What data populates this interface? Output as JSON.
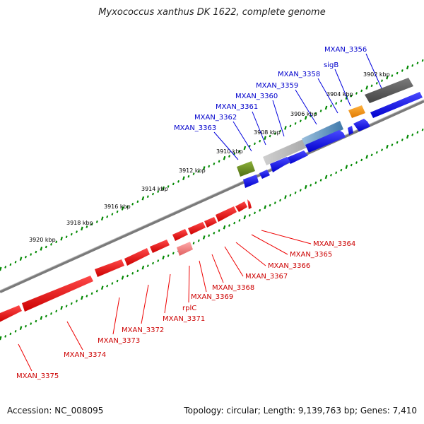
{
  "title": "Myxococcus xanthus DK 1622, complete genome",
  "footer": {
    "accession": "Accession: NC_008095",
    "summary": "Topology: circular; Length: 9,139,763 bp; Genes: 7,410"
  },
  "colors": {
    "forward": "#0000dd",
    "reverse": "#ee0000",
    "forward_label": "#0000cc",
    "reverse_label": "#cc0000",
    "backbone": "#777777",
    "gc_ticks": "#008800"
  },
  "ticks": [
    "3902 kbp",
    "3904 kbp",
    "3906 kbp",
    "3908 kbp",
    "3910 kbp",
    "3912 kbp",
    "3914 kbp",
    "3916 kbp",
    "3918 kbp",
    "3920 kbp"
  ],
  "forward_labels": [
    "MXAN_3356",
    "sigB",
    "MXAN_3358",
    "MXAN_3359",
    "MXAN_3360",
    "MXAN_3361",
    "MXAN_3362",
    "MXAN_3363"
  ],
  "reverse_labels": [
    "MXAN_3364",
    "MXAN_3365",
    "MXAN_3366",
    "MXAN_3367",
    "MXAN_3368",
    "MXAN_3369",
    "rplC",
    "MXAN_3371",
    "MXAN_3372",
    "MXAN_3373",
    "MXAN_3374",
    "MXAN_3375"
  ],
  "feature_tracks": {
    "outer_features": [
      {
        "label": "gray-dark feature",
        "color": "#555555"
      },
      {
        "label": "orange feature",
        "color": "#ff9900"
      },
      {
        "label": "steel-blue feature",
        "color": "#4f86b5"
      },
      {
        "label": "olive feature",
        "color": "#6b8e23"
      },
      {
        "label": "pink feature",
        "color": "#f08080"
      }
    ]
  }
}
